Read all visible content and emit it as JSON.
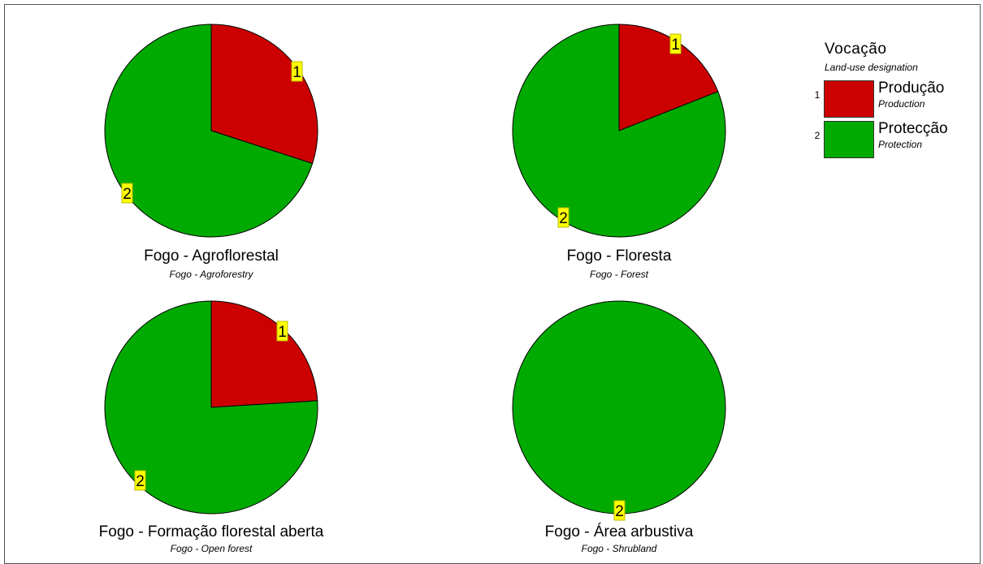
{
  "legend": {
    "title": "Vocação",
    "subtitle": "Land-use designation",
    "items": [
      {
        "number": "1",
        "label": "Produção",
        "sublabel": "Production",
        "color": "#cc0000"
      },
      {
        "number": "2",
        "label": "Protecção",
        "sublabel": "Protection",
        "color": "#00aa00"
      }
    ]
  },
  "chart_data": [
    {
      "type": "pie",
      "title": "Fogo - Agroflorestal",
      "subtitle": "Fogo - Agroforestry",
      "slices": [
        {
          "label": "1",
          "category": "Produção",
          "value": 30,
          "color": "#cc0000"
        },
        {
          "label": "2",
          "category": "Protecção",
          "value": 70,
          "color": "#00aa00"
        }
      ]
    },
    {
      "type": "pie",
      "title": "Fogo - Floresta",
      "subtitle": "Fogo - Forest",
      "slices": [
        {
          "label": "1",
          "category": "Produção",
          "value": 19,
          "color": "#cc0000"
        },
        {
          "label": "2",
          "category": "Protecção",
          "value": 81,
          "color": "#00aa00"
        }
      ]
    },
    {
      "type": "pie",
      "title": "Fogo - Formação florestal aberta",
      "subtitle": "Fogo - Open forest",
      "slices": [
        {
          "label": "1",
          "category": "Produção",
          "value": 24,
          "color": "#cc0000"
        },
        {
          "label": "2",
          "category": "Protecção",
          "value": 76,
          "color": "#00aa00"
        }
      ]
    },
    {
      "type": "pie",
      "title": "Fogo - Área arbustiva",
      "subtitle": "Fogo - Shrubland",
      "slices": [
        {
          "label": "2",
          "category": "Protecção",
          "value": 100,
          "color": "#00aa00"
        }
      ]
    }
  ]
}
